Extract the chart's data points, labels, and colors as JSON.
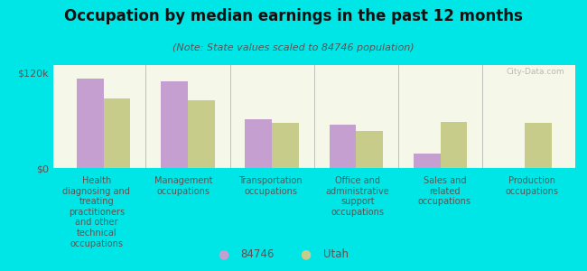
{
  "title": "Occupation by median earnings in the past 12 months",
  "subtitle": "(Note: State values scaled to 84746 population)",
  "background_color": "#00e5e5",
  "plot_bg_top": "#f5f8e8",
  "plot_bg_bottom": "#e8f0d0",
  "categories": [
    "Health\ndiagnosing and\ntreating\npractitioners\nand other\ntechnical\noccupations",
    "Management\noccupations",
    "Transportation\noccupations",
    "Office and\nadministrative\nsupport\noccupations",
    "Sales and\nrelated\noccupations",
    "Production\noccupations"
  ],
  "values_84746": [
    113000,
    110000,
    62000,
    55000,
    18000,
    0
  ],
  "values_utah": [
    88000,
    85000,
    57000,
    47000,
    58000,
    57000
  ],
  "color_84746": "#c49fd0",
  "color_utah": "#c8cc8a",
  "ylim": [
    0,
    130000
  ],
  "yticks": [
    0,
    120000
  ],
  "ytick_labels": [
    "$0",
    "$120k"
  ],
  "legend_84746": "84746",
  "legend_utah": "Utah",
  "watermark": "City-Data.com"
}
